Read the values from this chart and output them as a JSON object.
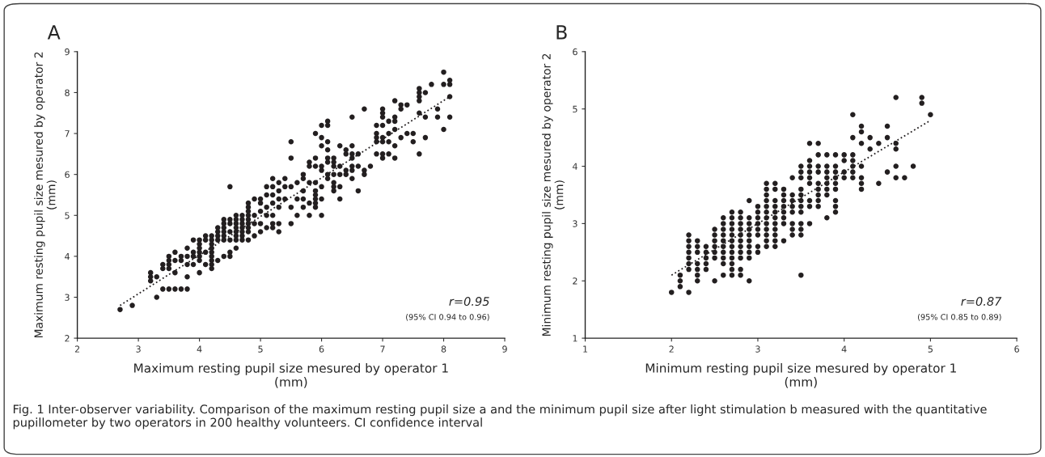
{
  "chart_data": [
    {
      "type": "scatter",
      "title": "A",
      "xlabel": "Maximum resting pupil size mesured by operator 1\n(mm)",
      "ylabel": "Maximum resting pupil size mesured by operator 2\n(mm)",
      "xlim": [
        2,
        9
      ],
      "ylim": [
        2,
        9
      ],
      "xticks": [
        2,
        3,
        4,
        5,
        6,
        7,
        8,
        9
      ],
      "yticks": [
        2,
        3,
        4,
        5,
        6,
        7,
        8,
        9
      ],
      "grid": false,
      "legend": false,
      "marker": "circle",
      "annotations": [
        "r=0.95",
        "(95% CI 0.94 to 0.96)",
        "Fig. 1 Inter-observer variability. Comparison of the maximum resting pupil size a and the minimum pupil size after light stimulation b measured with the quantitative pupillometer by two operators in 200 healthy volunteers. CI confidence interval"
      ],
      "series": [
        {
          "color": "#231f20",
          "x": [
            2.7,
            2.9,
            3.2,
            3.2,
            3.2,
            3.3,
            3.3,
            3.4,
            3.4,
            3.4,
            3.5,
            3.5,
            3.5,
            3.5,
            3.5,
            3.6,
            3.6,
            3.6,
            3.6,
            3.7,
            3.7,
            3.7,
            3.8,
            3.8,
            3.8,
            3.8,
            3.8,
            3.9,
            3.9,
            3.9,
            3.9,
            4.0,
            4.0,
            4.0,
            4.0,
            4.0,
            4.0,
            4.0,
            4.1,
            4.1,
            4.1,
            4.1,
            4.2,
            4.2,
            4.2,
            4.2,
            4.2,
            4.2,
            4.2,
            4.2,
            4.2,
            4.3,
            4.3,
            4.3,
            4.3,
            4.3,
            4.4,
            4.4,
            4.4,
            4.4,
            4.4,
            4.4,
            4.4,
            4.5,
            4.5,
            4.5,
            4.5,
            4.5,
            4.5,
            4.5,
            4.6,
            4.6,
            4.6,
            4.6,
            4.6,
            4.6,
            4.6,
            4.6,
            4.7,
            4.7,
            4.7,
            4.7,
            4.7,
            4.7,
            4.7,
            4.8,
            4.8,
            4.8,
            4.8,
            4.8,
            4.8,
            4.8,
            4.8,
            4.8,
            4.9,
            4.9,
            4.9,
            4.9,
            5.0,
            5.0,
            5.0,
            5.0,
            5.0,
            5.1,
            5.1,
            5.1,
            5.1,
            5.1,
            5.2,
            5.2,
            5.2,
            5.2,
            5.2,
            5.2,
            5.2,
            5.3,
            5.3,
            5.3,
            5.3,
            5.3,
            5.3,
            5.4,
            5.4,
            5.4,
            5.5,
            5.5,
            5.5,
            5.5,
            5.5,
            5.6,
            5.6,
            5.6,
            5.7,
            5.7,
            5.7,
            5.7,
            5.7,
            5.8,
            5.8,
            5.8,
            5.8,
            5.8,
            5.9,
            5.9,
            5.9,
            5.9,
            5.9,
            5.9,
            5.9,
            5.9,
            5.9,
            6.0,
            6.0,
            6.0,
            6.0,
            6.0,
            6.0,
            6.0,
            6.0,
            6.1,
            6.1,
            6.1,
            6.1,
            6.1,
            6.1,
            6.1,
            6.1,
            6.2,
            6.2,
            6.2,
            6.2,
            6.2,
            6.2,
            6.2,
            6.3,
            6.3,
            6.3,
            6.3,
            6.3,
            6.4,
            6.4,
            6.4,
            6.4,
            6.5,
            6.5,
            6.5,
            6.5,
            6.5,
            6.5,
            6.5,
            6.6,
            6.6,
            6.6,
            6.7,
            6.7,
            6.7,
            6.8,
            6.9,
            6.9,
            6.9,
            6.9,
            6.9,
            7.0,
            7.0,
            7.0,
            7.0,
            7.0,
            7.0,
            7.0,
            7.0,
            7.1,
            7.1,
            7.1,
            7.1,
            7.2,
            7.2,
            7.2,
            7.2,
            7.2,
            7.2,
            7.3,
            7.3,
            7.3,
            7.4,
            7.4,
            7.5,
            7.5,
            7.6,
            7.6,
            7.6,
            7.6,
            7.6,
            7.6,
            7.7,
            7.7,
            7.7,
            7.8,
            7.9,
            7.9,
            8.0,
            8.0,
            8.0,
            8.1,
            8.1,
            8.1,
            8.1
          ],
          "values": [
            2.7,
            2.8,
            3.6,
            3.5,
            3.4,
            3.0,
            3.5,
            3.2,
            3.8,
            3.7,
            3.2,
            4.0,
            3.9,
            3.8,
            3.7,
            3.2,
            4.1,
            3.9,
            3.6,
            3.2,
            4.0,
            3.9,
            3.2,
            4.2,
            4.0,
            3.8,
            3.5,
            4.4,
            4.1,
            4.0,
            3.8,
            4.4,
            4.3,
            4.2,
            4.1,
            4.0,
            3.9,
            3.6,
            4.5,
            4.4,
            4.1,
            3.8,
            4.5,
            4.4,
            4.3,
            4.2,
            4.1,
            4.0,
            3.9,
            3.8,
            3.7,
            4.7,
            4.6,
            4.5,
            4.4,
            3.9,
            4.9,
            4.8,
            4.7,
            4.6,
            4.5,
            4.4,
            4.0,
            5.7,
            4.9,
            4.8,
            4.6,
            4.4,
            4.1,
            4.0,
            5.0,
            4.9,
            4.8,
            4.7,
            4.6,
            4.5,
            4.4,
            4.2,
            5.0,
            4.9,
            4.8,
            4.7,
            4.6,
            4.5,
            4.4,
            5.3,
            5.2,
            5.1,
            5.0,
            4.9,
            4.8,
            4.7,
            4.6,
            4.4,
            5.4,
            5.0,
            4.8,
            4.5,
            5.4,
            5.3,
            5.1,
            4.8,
            4.6,
            5.7,
            5.5,
            5.2,
            5.0,
            4.7,
            5.9,
            5.7,
            5.5,
            5.3,
            5.0,
            4.8,
            4.7,
            5.8,
            5.6,
            5.4,
            5.2,
            4.8,
            4.6,
            5.9,
            5.7,
            5.4,
            6.8,
            6.4,
            5.7,
            5.2,
            4.8,
            5.8,
            5.4,
            5.0,
            6.0,
            5.9,
            5.6,
            5.4,
            5.2,
            6.3,
            6.2,
            5.8,
            5.3,
            5.0,
            7.0,
            6.4,
            6.2,
            5.8,
            5.6,
            5.5,
            5.4,
            5.3,
            5.2,
            7.2,
            6.9,
            6.7,
            6.2,
            6.1,
            5.7,
            5.4,
            5.0,
            7.3,
            7.2,
            6.8,
            6.6,
            6.4,
            6.3,
            6.0,
            5.9,
            6.4,
            6.3,
            6.2,
            6.0,
            5.8,
            5.7,
            5.6,
            6.7,
            6.2,
            6.0,
            5.7,
            5.4,
            6.6,
            6.5,
            6.1,
            6.0,
            7.4,
            6.7,
            6.5,
            6.4,
            6.2,
            6.1,
            5.9,
            6.5,
            6.2,
            5.6,
            7.6,
            6.1,
            6.0,
            6.2,
            7.2,
            7.0,
            6.9,
            6.8,
            6.5,
            7.6,
            7.5,
            7.4,
            7.2,
            6.9,
            6.8,
            6.5,
            6.4,
            7.3,
            7.0,
            6.8,
            6.5,
            7.8,
            7.4,
            7.3,
            7.1,
            6.7,
            6.4,
            7.7,
            7.6,
            6.9,
            7.7,
            7.0,
            7.0,
            6.8,
            8.1,
            8.0,
            7.9,
            7.8,
            7.5,
            6.5,
            8.0,
            7.4,
            6.9,
            8.2,
            7.6,
            7.4,
            8.5,
            8.2,
            7.1,
            8.3,
            8.2,
            7.9,
            7.4
          ]
        },
        {
          "type": "line",
          "color": "#231f20",
          "line_style": "dotted",
          "marker": "none",
          "x": [
            2.7,
            8.1
          ],
          "values": [
            2.8,
            7.9
          ]
        }
      ]
    },
    {
      "type": "scatter",
      "title": "B",
      "xlabel": "Minimum resting pupil size mesured by operator 1\n(mm)",
      "ylabel": "Minimum resting pupil size mesured by operator 2\n(mm)",
      "xlim": [
        1,
        6
      ],
      "ylim": [
        1,
        6
      ],
      "xticks": [
        1,
        2,
        3,
        4,
        5,
        6
      ],
      "yticks": [
        1,
        2,
        3,
        4,
        5,
        6
      ],
      "grid": false,
      "legend": false,
      "marker": "circle",
      "annotations": [
        "r=0.87",
        "(95% CI 0.85 to 0.89)"
      ],
      "series": [
        {
          "color": "#231f20",
          "x": [
            2.0,
            2.1,
            2.1,
            2.1,
            2.2,
            2.2,
            2.2,
            2.2,
            2.2,
            2.2,
            2.2,
            2.2,
            2.3,
            2.3,
            2.3,
            2.3,
            2.3,
            2.3,
            2.3,
            2.4,
            2.4,
            2.4,
            2.4,
            2.4,
            2.5,
            2.5,
            2.5,
            2.5,
            2.5,
            2.5,
            2.5,
            2.6,
            2.6,
            2.6,
            2.6,
            2.6,
            2.6,
            2.6,
            2.6,
            2.6,
            2.6,
            2.7,
            2.7,
            2.7,
            2.7,
            2.7,
            2.7,
            2.7,
            2.7,
            2.7,
            2.7,
            2.7,
            2.7,
            2.8,
            2.8,
            2.8,
            2.8,
            2.8,
            2.8,
            2.8,
            2.8,
            2.8,
            2.8,
            2.8,
            2.9,
            2.9,
            2.9,
            2.9,
            2.9,
            2.9,
            2.9,
            2.9,
            2.9,
            2.9,
            3.0,
            3.0,
            3.0,
            3.0,
            3.0,
            3.0,
            3.0,
            3.0,
            3.1,
            3.1,
            3.1,
            3.1,
            3.1,
            3.1,
            3.1,
            3.1,
            3.1,
            3.1,
            3.1,
            3.1,
            3.2,
            3.2,
            3.2,
            3.2,
            3.2,
            3.2,
            3.2,
            3.2,
            3.2,
            3.2,
            3.2,
            3.3,
            3.3,
            3.3,
            3.3,
            3.3,
            3.3,
            3.3,
            3.3,
            3.4,
            3.4,
            3.4,
            3.4,
            3.4,
            3.4,
            3.4,
            3.4,
            3.5,
            3.5,
            3.5,
            3.5,
            3.5,
            3.5,
            3.5,
            3.5,
            3.5,
            3.5,
            3.5,
            3.5,
            3.6,
            3.6,
            3.6,
            3.6,
            3.6,
            3.6,
            3.6,
            3.6,
            3.6,
            3.7,
            3.7,
            3.7,
            3.7,
            3.7,
            3.7,
            3.7,
            3.7,
            3.7,
            3.8,
            3.8,
            3.8,
            3.8,
            3.8,
            3.8,
            3.8,
            3.8,
            3.9,
            3.9,
            3.9,
            3.9,
            3.9,
            3.9,
            3.9,
            3.9,
            3.9,
            4.0,
            4.0,
            4.0,
            4.0,
            4.1,
            4.1,
            4.1,
            4.1,
            4.1,
            4.1,
            4.1,
            4.2,
            4.2,
            4.2,
            4.2,
            4.2,
            4.2,
            4.2,
            4.3,
            4.3,
            4.4,
            4.4,
            4.5,
            4.5,
            4.5,
            4.6,
            4.6,
            4.6,
            4.6,
            4.6,
            4.7,
            4.8,
            4.9,
            4.9,
            5.0
          ],
          "values": [
            1.8,
            2.1,
            2.0,
            1.9,
            2.8,
            2.7,
            2.6,
            2.5,
            2.4,
            2.3,
            2.2,
            1.8,
            2.7,
            2.6,
            2.5,
            2.3,
            2.2,
            2.1,
            2.0,
            2.6,
            2.5,
            2.4,
            2.3,
            2.2,
            2.9,
            2.8,
            2.7,
            2.6,
            2.5,
            2.4,
            2.0,
            3.1,
            3.0,
            2.9,
            2.8,
            2.7,
            2.6,
            2.5,
            2.4,
            2.3,
            2.1,
            3.2,
            3.1,
            3.0,
            2.9,
            2.8,
            2.7,
            2.6,
            2.5,
            2.4,
            2.3,
            2.2,
            2.1,
            3.2,
            3.1,
            3.0,
            2.9,
            2.8,
            2.7,
            2.6,
            2.5,
            2.4,
            2.2,
            2.1,
            3.4,
            3.1,
            3.0,
            2.9,
            2.8,
            2.7,
            2.6,
            2.5,
            2.4,
            2.0,
            3.3,
            3.2,
            3.1,
            3.0,
            2.9,
            2.8,
            2.6,
            2.5,
            3.7,
            3.6,
            3.5,
            3.4,
            3.3,
            3.2,
            3.1,
            3.0,
            2.9,
            2.8,
            2.7,
            2.6,
            3.7,
            3.6,
            3.4,
            3.3,
            3.2,
            3.1,
            3.0,
            2.9,
            2.8,
            2.7,
            2.6,
            3.6,
            3.5,
            3.4,
            3.3,
            3.2,
            3.1,
            3.0,
            2.7,
            3.8,
            3.5,
            3.4,
            3.3,
            3.2,
            3.0,
            2.9,
            2.8,
            4.0,
            3.9,
            3.8,
            3.6,
            3.5,
            3.4,
            3.3,
            3.2,
            3.0,
            2.9,
            2.8,
            2.1,
            4.4,
            4.1,
            4.0,
            3.9,
            3.8,
            3.7,
            3.4,
            3.3,
            3.0,
            4.4,
            4.2,
            4.0,
            3.9,
            3.7,
            3.6,
            3.5,
            3.4,
            3.3,
            4.2,
            4.0,
            3.9,
            3.8,
            3.7,
            3.6,
            3.5,
            3.1,
            4.2,
            4.0,
            3.9,
            3.8,
            3.7,
            3.6,
            3.4,
            3.3,
            3.2,
            4.2,
            4.1,
            3.9,
            3.8,
            4.9,
            4.5,
            4.2,
            4.1,
            4.0,
            3.9,
            3.8,
            4.7,
            4.6,
            4.4,
            4.0,
            3.8,
            3.7,
            3.6,
            4.5,
            4.3,
            4.4,
            3.7,
            4.7,
            4.5,
            3.9,
            5.2,
            4.4,
            4.3,
            4.0,
            3.8,
            3.8,
            4.0,
            5.2,
            5.1,
            4.9
          ]
        },
        {
          "type": "line",
          "color": "#231f20",
          "line_style": "dotted",
          "marker": "none",
          "x": [
            2.0,
            5.0
          ],
          "values": [
            2.1,
            4.8
          ]
        }
      ]
    }
  ]
}
